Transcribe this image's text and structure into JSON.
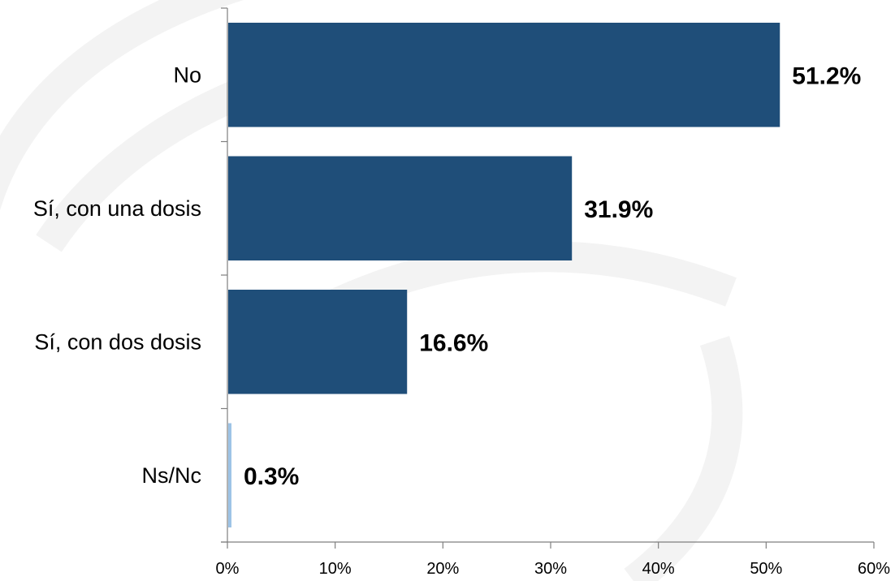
{
  "chart_data": {
    "type": "bar",
    "orientation": "horizontal",
    "categories": [
      "No",
      "Sí, con una dosis",
      "Sí, con dos dosis",
      "Ns/Nc"
    ],
    "values": [
      51.2,
      31.9,
      16.6,
      0.3
    ],
    "data_labels": [
      "51.2%",
      "31.9%",
      "16.6%",
      "0.3%"
    ],
    "x_ticks": [
      "0%",
      "10%",
      "20%",
      "30%",
      "40%",
      "50%",
      "60%"
    ],
    "xlim": [
      0,
      60
    ],
    "title": "",
    "xlabel": "",
    "ylabel": "",
    "grid": false,
    "legend": "none",
    "colors": {
      "bar": "#1f4e79",
      "bar_small": "#9dc3e6",
      "axis": "#7f7f7f",
      "watermark": "#f2f2f2"
    }
  }
}
